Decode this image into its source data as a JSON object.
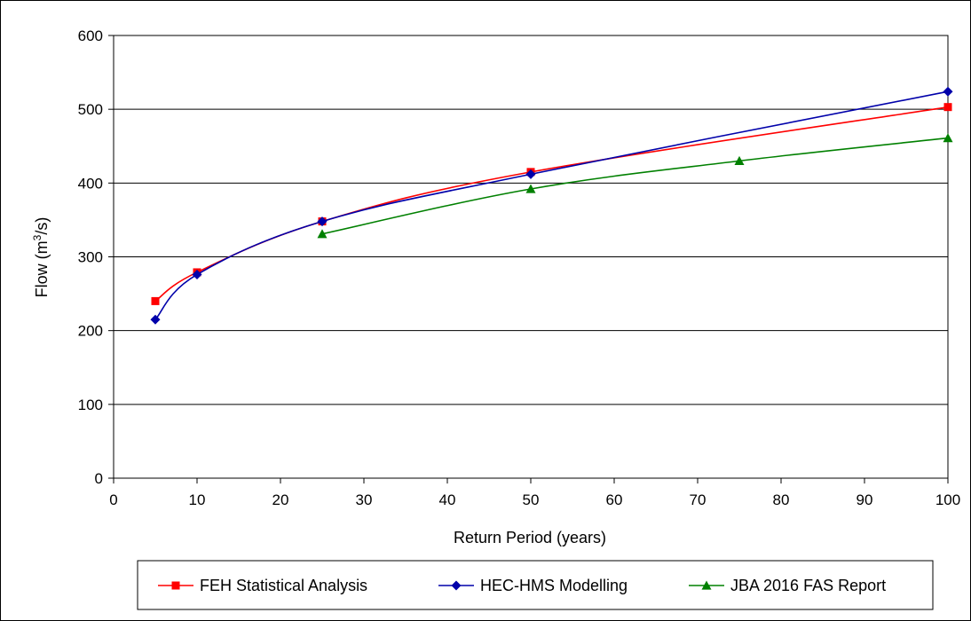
{
  "chart_data": {
    "type": "line",
    "title": "",
    "xlabel": "Return Period (years)",
    "ylabel": {
      "main": "Flow (m",
      "sup": "3",
      "end": "/s)"
    },
    "xlim": [
      0,
      100
    ],
    "ylim": [
      0,
      600
    ],
    "xticks": [
      "0",
      "10",
      "20",
      "30",
      "40",
      "50",
      "60",
      "70",
      "80",
      "90",
      "100"
    ],
    "yticks": [
      "0",
      "100",
      "200",
      "300",
      "400",
      "500",
      "600"
    ],
    "grid": {
      "horizontal": true,
      "vertical": false
    },
    "legend_position": "bottom",
    "series": [
      {
        "name": "FEH Statistical Analysis",
        "color": "#ff0000",
        "marker": "square",
        "x": [
          5,
          10,
          25,
          50,
          100
        ],
        "y": [
          240,
          279,
          348,
          415,
          503
        ]
      },
      {
        "name": "HEC-HMS Modelling",
        "color": "#0000aa",
        "marker": "diamond",
        "x": [
          5,
          10,
          25,
          50,
          100
        ],
        "y": [
          215,
          276,
          348,
          412,
          524
        ]
      },
      {
        "name": "JBA 2016 FAS Report",
        "color": "#008000",
        "marker": "triangle",
        "x": [
          25,
          50,
          75,
          100
        ],
        "y": [
          331,
          392,
          430,
          461
        ]
      }
    ]
  }
}
